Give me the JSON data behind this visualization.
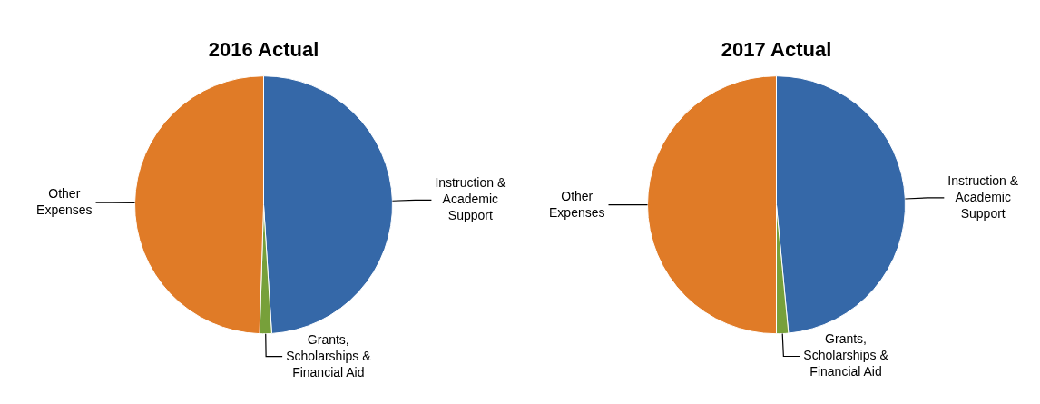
{
  "chart_data": [
    {
      "type": "pie",
      "title": "2016 Actual",
      "categories": [
        "Instruction & Academic Support",
        "Grants, Scholarships & Financial Aid",
        "Other Expenses"
      ],
      "values": [
        49,
        1.5,
        49.5
      ],
      "colors": [
        "#3568a8",
        "#77a03a",
        "#e07b27"
      ],
      "legend": false
    },
    {
      "type": "pie",
      "title": "2017 Actual",
      "categories": [
        "Instruction & Academic Support",
        "Grants, Scholarships & Financial Aid",
        "Other Expenses"
      ],
      "values": [
        48.5,
        1.5,
        50
      ],
      "colors": [
        "#3568a8",
        "#77a03a",
        "#e07b27"
      ],
      "legend": false
    }
  ]
}
